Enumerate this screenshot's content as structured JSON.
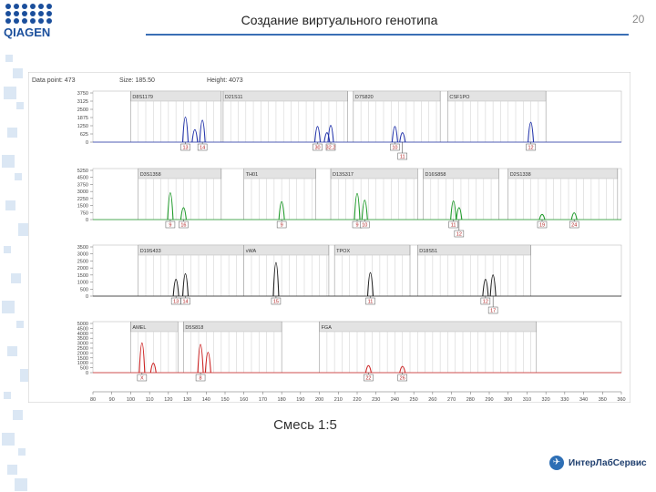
{
  "slide": {
    "title": "Создание виртуального генотипа",
    "page_number": "20",
    "caption": "Смесь 1:5",
    "logo_text": "QIAGEN",
    "footer_brand": "ИнтерЛабСервис",
    "accent_color": "#3a6fb5"
  },
  "chart_data": {
    "type": "line",
    "title": "",
    "header": [
      "Data point: 473",
      "Size: 185.50",
      "Height: 4073"
    ],
    "x_axis": {
      "range": [
        80,
        360
      ],
      "ticks": [
        80,
        90,
        100,
        110,
        120,
        130,
        140,
        150,
        160,
        170,
        180,
        190,
        200,
        210,
        220,
        230,
        240,
        250,
        260,
        270,
        280,
        290,
        300,
        310,
        320,
        330,
        340,
        350,
        360
      ],
      "tick_labels": [
        "80",
        "90",
        "100",
        "110",
        "120",
        "130",
        "140",
        "150",
        "160",
        "170",
        "180",
        "190",
        "200",
        "210",
        "220",
        "230",
        "240",
        "250",
        "260",
        "270",
        "280",
        "290",
        "300",
        "310",
        "320",
        "330",
        "340",
        "350",
        "360"
      ]
    },
    "panels": [
      {
        "dye": "blue",
        "color": "#2233aa",
        "y_ticks": [
          "3750",
          "3125",
          "2500",
          "1875",
          "1250",
          "625",
          "0"
        ],
        "y_max": 3750,
        "markers": [
          {
            "name": "D8S1179",
            "start": 100,
            "end": 148
          },
          {
            "name": "D21S11",
            "start": 149,
            "end": 215
          },
          {
            "name": "D7S820",
            "start": 218,
            "end": 264
          },
          {
            "name": "CSF1PO",
            "start": 268,
            "end": 320
          }
        ],
        "peaks": [
          {
            "x": 129,
            "h": 2400
          },
          {
            "x": 134,
            "h": 1200
          },
          {
            "x": 138,
            "h": 2100
          },
          {
            "x": 199,
            "h": 1500
          },
          {
            "x": 204,
            "h": 900
          },
          {
            "x": 206,
            "h": 1600
          },
          {
            "x": 240,
            "h": 1500
          },
          {
            "x": 244,
            "h": 900
          },
          {
            "x": 312,
            "h": 1900
          }
        ],
        "alleles": [
          {
            "x": 129,
            "label": "13",
            "row": 1
          },
          {
            "x": 138,
            "label": "14",
            "row": 1
          },
          {
            "x": 199,
            "label": "30",
            "row": 1
          },
          {
            "x": 206,
            "label": "32.2",
            "row": 1
          },
          {
            "x": 240,
            "label": "10",
            "row": 1
          },
          {
            "x": 244,
            "label": "11",
            "row": 2
          },
          {
            "x": 312,
            "label": "12",
            "row": 1
          }
        ]
      },
      {
        "dye": "green",
        "color": "#1f9a2a",
        "y_ticks": [
          "5250",
          "4500",
          "3750",
          "3000",
          "2250",
          "1500",
          "750",
          "0"
        ],
        "y_max": 5250,
        "markers": [
          {
            "name": "D3S1358",
            "start": 104,
            "end": 148
          },
          {
            "name": "TH01",
            "start": 160,
            "end": 198
          },
          {
            "name": "D13S317",
            "start": 206,
            "end": 252
          },
          {
            "name": "D16S858",
            "start": 255,
            "end": 295
          },
          {
            "name": "D2S1338",
            "start": 300,
            "end": 358
          }
        ],
        "peaks": [
          {
            "x": 121,
            "h": 3600
          },
          {
            "x": 128,
            "h": 1600
          },
          {
            "x": 180,
            "h": 2400
          },
          {
            "x": 220,
            "h": 3500
          },
          {
            "x": 224,
            "h": 2600
          },
          {
            "x": 271,
            "h": 2500
          },
          {
            "x": 274,
            "h": 1600
          },
          {
            "x": 318,
            "h": 700
          },
          {
            "x": 335,
            "h": 900
          }
        ],
        "alleles": [
          {
            "x": 121,
            "label": "9",
            "row": 1
          },
          {
            "x": 128,
            "label": "16",
            "row": 1
          },
          {
            "x": 180,
            "label": "9",
            "row": 1
          },
          {
            "x": 220,
            "label": "9",
            "row": 1
          },
          {
            "x": 224,
            "label": "10",
            "row": 1
          },
          {
            "x": 271,
            "label": "11",
            "row": 1
          },
          {
            "x": 274,
            "label": "12",
            "row": 2
          },
          {
            "x": 318,
            "label": "19",
            "row": 1
          },
          {
            "x": 335,
            "label": "24",
            "row": 1
          }
        ]
      },
      {
        "dye": "black",
        "color": "#222222",
        "y_ticks": [
          "3500",
          "3000",
          "2500",
          "2000",
          "1500",
          "1000",
          "500",
          "0"
        ],
        "y_max": 3500,
        "markers": [
          {
            "name": "D19S433",
            "start": 104,
            "end": 160
          },
          {
            "name": "vWA",
            "start": 160,
            "end": 205
          },
          {
            "name": "TPOX",
            "start": 208,
            "end": 248
          },
          {
            "name": "D18S51",
            "start": 252,
            "end": 312
          }
        ],
        "peaks": [
          {
            "x": 124,
            "h": 1500
          },
          {
            "x": 129,
            "h": 2000
          },
          {
            "x": 177,
            "h": 3000
          },
          {
            "x": 227,
            "h": 2100
          },
          {
            "x": 288,
            "h": 1500
          },
          {
            "x": 292,
            "h": 1900
          }
        ],
        "alleles": [
          {
            "x": 124,
            "label": "13",
            "row": 1
          },
          {
            "x": 129,
            "label": "14",
            "row": 1
          },
          {
            "x": 177,
            "label": "15",
            "row": 1
          },
          {
            "x": 227,
            "label": "11",
            "row": 1
          },
          {
            "x": 288,
            "label": "12",
            "row": 1
          },
          {
            "x": 292,
            "label": "17",
            "row": 2
          }
        ]
      },
      {
        "dye": "red",
        "color": "#cc2222",
        "y_ticks": [
          "5000",
          "4500",
          "4000",
          "3500",
          "3000",
          "2500",
          "2000",
          "1500",
          "1000",
          "500",
          "0"
        ],
        "y_max": 5000,
        "markers": [
          {
            "name": "AMEL",
            "start": 100,
            "end": 125
          },
          {
            "name": "D5S818",
            "start": 128,
            "end": 180
          },
          {
            "name": "FGA",
            "start": 200,
            "end": 315
          }
        ],
        "peaks": [
          {
            "x": 106,
            "h": 3800
          },
          {
            "x": 112,
            "h": 1200
          },
          {
            "x": 137,
            "h": 3600
          },
          {
            "x": 141,
            "h": 2600
          },
          {
            "x": 226,
            "h": 900
          },
          {
            "x": 244,
            "h": 800
          }
        ],
        "alleles": [
          {
            "x": 106,
            "label": "X",
            "row": 1
          },
          {
            "x": 137,
            "label": "8",
            "row": 1
          },
          {
            "x": 226,
            "label": "22",
            "row": 1
          },
          {
            "x": 244,
            "label": "26",
            "row": 1
          }
        ]
      }
    ]
  }
}
